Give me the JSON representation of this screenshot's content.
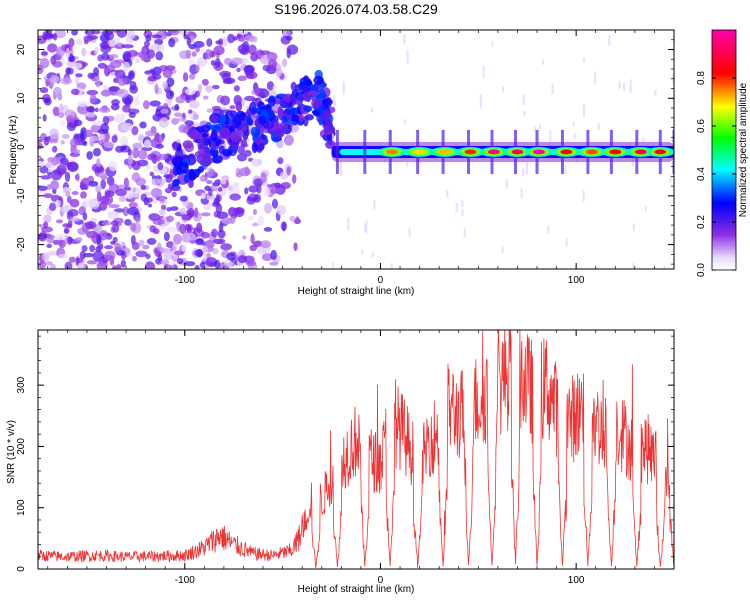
{
  "title": "S196.2026.074.03.58.C29",
  "chart_data": [
    {
      "type": "heatmap",
      "title": "S196.2026.074.03.58.C29",
      "xlabel": "Height of straight line (km)",
      "ylabel": "Frequency (Hz)",
      "xlim": [
        -175,
        150
      ],
      "ylim": [
        -25,
        24
      ],
      "xticks": [
        -100,
        0,
        100
      ],
      "xtick_labels": [
        "-100",
        "0",
        "100"
      ],
      "yticks": [
        -20,
        -10,
        0,
        10,
        20
      ],
      "ytick_labels": [
        "-20",
        "-10",
        "0",
        "10",
        "20"
      ],
      "colorbar": {
        "label": "Normalized spectral amplitude",
        "range": [
          0,
          1
        ],
        "ticks": [
          0.0,
          0.2,
          0.4,
          0.6,
          0.8
        ],
        "tick_labels": [
          "0.0",
          "0.2",
          "0.4",
          "0.6",
          "0.8"
        ],
        "colormap": "rainbow (white-violet-blue-cyan-green-yellow-red-magenta)"
      },
      "features": [
        {
          "name": "diffuse noise",
          "x_range": [
            -175,
            -42
          ],
          "frequency_range": [
            -25,
            24
          ],
          "amplitude": 0.15
        },
        {
          "name": "rising tone",
          "x": [
            -105,
            -90,
            -75,
            -60,
            -45,
            -32,
            -25
          ],
          "frequency": [
            -4,
            0,
            4,
            4,
            8,
            11,
            4
          ],
          "amplitude": 0.25
        },
        {
          "name": "narrowband signal",
          "x_range": [
            -25,
            150
          ],
          "frequency": -1,
          "amplitude_peaks": [
            {
              "x": 6,
              "amplitude": 0.75
            },
            {
              "x": 20,
              "amplitude": 0.7
            },
            {
              "x": 33,
              "amplitude": 0.72
            },
            {
              "x": 46,
              "amplitude": 0.8
            },
            {
              "x": 58,
              "amplitude": 0.95
            },
            {
              "x": 70,
              "amplitude": 0.92
            },
            {
              "x": 81,
              "amplitude": 1.0
            },
            {
              "x": 95,
              "amplitude": 0.85
            },
            {
              "x": 108,
              "amplitude": 0.78
            },
            {
              "x": 120,
              "amplitude": 0.82
            },
            {
              "x": 133,
              "amplitude": 0.88
            },
            {
              "x": 143,
              "amplitude": 0.85
            }
          ]
        }
      ]
    },
    {
      "type": "line",
      "xlabel": "Height of straight line (km)",
      "ylabel": "SNR (10 * v/v)",
      "xlim": [
        -175,
        150
      ],
      "ylim": [
        0,
        390
      ],
      "xticks": [
        -100,
        0,
        100
      ],
      "xtick_labels": [
        "-100",
        "0",
        "100"
      ],
      "yticks": [
        0,
        100,
        200,
        300
      ],
      "ytick_labels": [
        "0",
        "100",
        "200",
        "300"
      ],
      "color": "#ee3333",
      "series": [
        {
          "name": "SNR",
          "x": [
            -175,
            -160,
            -145,
            -130,
            -115,
            -100,
            -90,
            -82,
            -75,
            -65,
            -55,
            -45,
            -40,
            -35,
            -30,
            -25,
            -20,
            -15,
            -10,
            -5,
            0,
            5,
            10,
            15,
            20,
            25,
            30,
            35,
            40,
            45,
            50,
            55,
            60,
            65,
            70,
            75,
            80,
            85,
            90,
            95,
            100,
            105,
            110,
            115,
            120,
            125,
            130,
            135,
            140,
            145,
            150
          ],
          "values": [
            22,
            20,
            22,
            20,
            21,
            22,
            35,
            55,
            40,
            25,
            22,
            30,
            60,
            120,
            110,
            150,
            175,
            200,
            220,
            180,
            170,
            240,
            230,
            200,
            160,
            215,
            220,
            265,
            250,
            260,
            275,
            290,
            300,
            320,
            330,
            300,
            280,
            300,
            260,
            240,
            250,
            270,
            240,
            220,
            240,
            215,
            190,
            200,
            185,
            130,
            170
          ],
          "dips": [
            -33,
            -22,
            -8,
            5,
            19,
            32,
            45,
            57,
            69,
            80,
            93,
            106,
            118,
            131,
            143,
            150
          ]
        }
      ]
    }
  ]
}
